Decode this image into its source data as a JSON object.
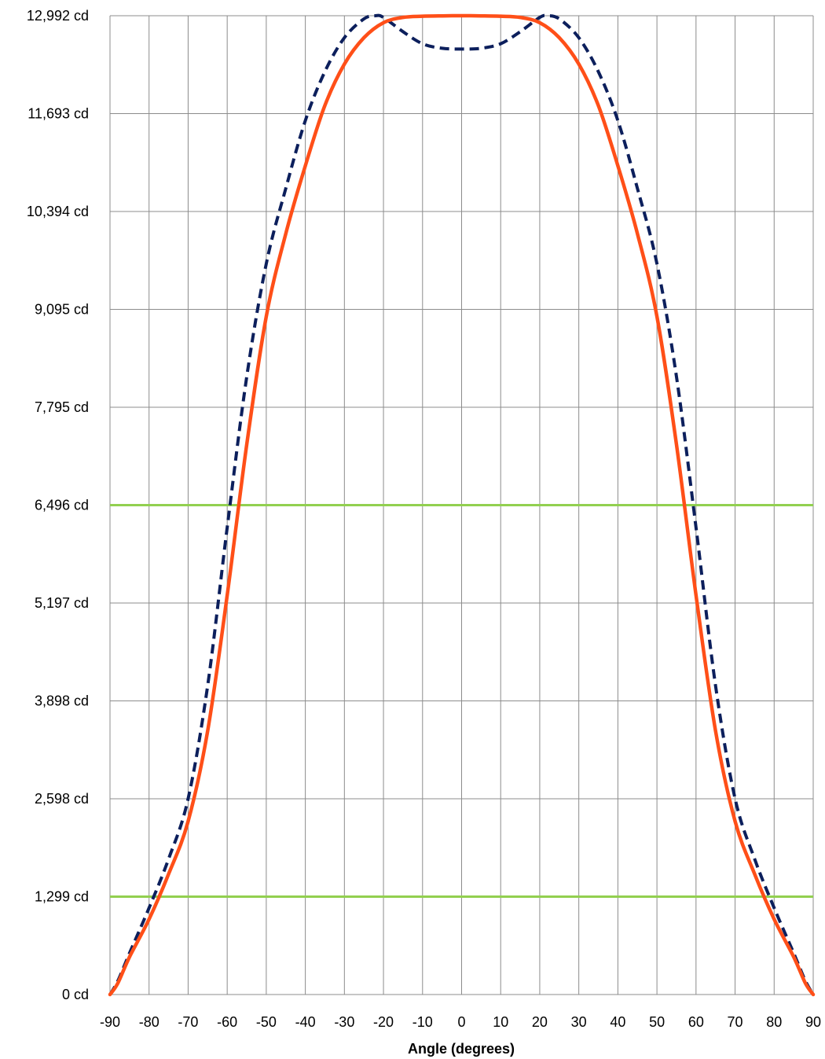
{
  "chart_data": {
    "type": "line",
    "title": "",
    "xlabel": "Angle (degrees)",
    "ylabel": "",
    "xlim": [
      -90,
      90
    ],
    "ylim": [
      0,
      12992
    ],
    "x_ticks": [
      -90,
      -80,
      -70,
      -60,
      -50,
      -40,
      -30,
      -20,
      -10,
      0,
      10,
      20,
      30,
      40,
      50,
      60,
      70,
      80,
      90
    ],
    "y_ticks": [
      0,
      1299,
      2598,
      3898,
      5197,
      6496,
      7795,
      9095,
      10394,
      11693,
      12992
    ],
    "y_tick_labels": [
      "0 cd",
      "1,299 cd",
      "2,598 cd",
      "3,898 cd",
      "5,197 cd",
      "6,496 cd",
      "7,795 cd",
      "9,095 cd",
      "10,394 cd",
      "11,693 cd",
      "12,992 cd"
    ],
    "x_tick_labels": [
      "-90",
      "-80",
      "-70",
      "-60",
      "-50",
      "-40",
      "-30",
      "-20",
      "-10",
      "0",
      "10",
      "20",
      "30",
      "40",
      "50",
      "60",
      "70",
      "80",
      "90"
    ],
    "grid": true,
    "legend": "none",
    "reference_lines": [
      {
        "y": 6496,
        "color": "#92d050"
      },
      {
        "y": 1299,
        "color": "#92d050"
      }
    ],
    "series": [
      {
        "style": "dashed",
        "color": "#0c1f5c",
        "x": [
          -90,
          -88,
          -85,
          -80,
          -75,
          -70,
          -65,
          -60,
          -55,
          -50,
          -45,
          -40,
          -35,
          -30,
          -25,
          -22,
          -20,
          -15,
          -10,
          -5,
          0,
          5,
          10,
          15,
          20,
          22,
          25,
          30,
          35,
          40,
          45,
          50,
          55,
          60,
          65,
          70,
          75,
          80,
          85,
          88,
          90
        ],
        "y": [
          0,
          180,
          550,
          1150,
          1800,
          2600,
          4100,
          6200,
          8200,
          9700,
          10700,
          11600,
          12250,
          12700,
          12950,
          12992,
          12970,
          12780,
          12620,
          12560,
          12550,
          12560,
          12620,
          12780,
          12970,
          12992,
          12950,
          12700,
          12250,
          11600,
          10700,
          9700,
          8200,
          6200,
          4100,
          2600,
          1800,
          1150,
          550,
          180,
          0
        ]
      },
      {
        "style": "solid",
        "color": "#ff4f18",
        "x": [
          -90,
          -88,
          -85,
          -80,
          -75,
          -70,
          -65,
          -60,
          -55,
          -50,
          -45,
          -40,
          -35,
          -30,
          -25,
          -20,
          -15,
          -10,
          -5,
          0,
          5,
          10,
          15,
          20,
          25,
          30,
          35,
          40,
          45,
          50,
          55,
          60,
          65,
          70,
          75,
          80,
          85,
          88,
          90
        ],
        "y": [
          0,
          150,
          500,
          1000,
          1600,
          2300,
          3500,
          5300,
          7300,
          9000,
          10100,
          11000,
          11800,
          12350,
          12700,
          12900,
          12970,
          12985,
          12990,
          12992,
          12990,
          12985,
          12970,
          12900,
          12700,
          12350,
          11800,
          11000,
          10100,
          9000,
          7300,
          5300,
          3500,
          2300,
          1600,
          1000,
          500,
          150,
          0
        ]
      }
    ]
  }
}
